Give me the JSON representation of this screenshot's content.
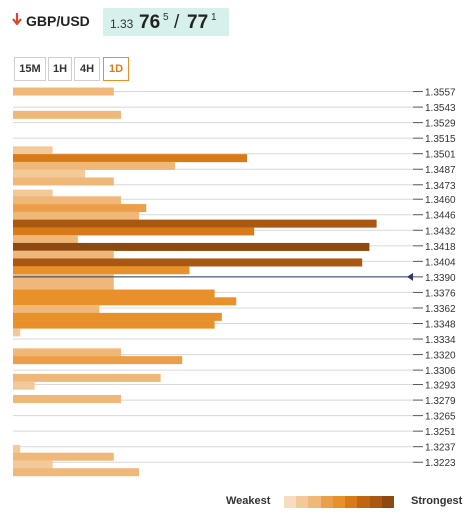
{
  "header": {
    "pair": "GBP/USD",
    "trend_icon": "down-arrow-icon",
    "bid_prefix": "1.33",
    "bid_main": "76",
    "bid_sup": "5",
    "separator": "/",
    "ask_main": "77",
    "ask_sup": "1"
  },
  "tabs": [
    {
      "label": "15M",
      "active": false
    },
    {
      "label": "1H",
      "active": false
    },
    {
      "label": "4H",
      "active": false
    },
    {
      "label": "1D",
      "active": true
    }
  ],
  "legend": {
    "weakest": "Weakest",
    "strongest": "Strongest",
    "scale_colors": [
      "#f8dcc0",
      "#f3c99a",
      "#f0b878",
      "#ec9e48",
      "#e8902a",
      "#d97a18",
      "#c06612",
      "#a85810",
      "#8c4a0e"
    ]
  },
  "colors": {
    "arrow_down": "#d9462a",
    "quote_bg": "#d6f0ec",
    "current_price_line": "#2b3a67",
    "grid_line": "#cccccc"
  },
  "chart_data": {
    "type": "bar",
    "orientation": "horizontal",
    "description_note": "Technical confluence indicator; bar length = confluence strength (0-100 relative scale); level = price level",
    "price_labels": [
      "1.3557",
      "1.3543",
      "1.3529",
      "1.3515",
      "1.3501",
      "1.3487",
      "1.3473",
      "1.3460",
      "1.3446",
      "1.3432",
      "1.3418",
      "1.3404",
      "1.3390",
      "1.3376",
      "1.3362",
      "1.3348",
      "1.3334",
      "1.3320",
      "1.3306",
      "1.3293",
      "1.3279",
      "1.3265",
      "1.3251",
      "1.3237",
      "1.3223"
    ],
    "ylim": [
      1.3216,
      1.3562
    ],
    "xlim": [
      0,
      100
    ],
    "current_price": 1.339,
    "bars": [
      {
        "level": 1.3557,
        "strength": 28,
        "shade": 2
      },
      {
        "level": 1.3536,
        "strength": 30,
        "shade": 2
      },
      {
        "level": 1.3504,
        "strength": 11,
        "shade": 1
      },
      {
        "level": 1.3497,
        "strength": 65,
        "shade": 5
      },
      {
        "level": 1.349,
        "strength": 45,
        "shade": 2
      },
      {
        "level": 1.3483,
        "strength": 20,
        "shade": 1
      },
      {
        "level": 1.3476,
        "strength": 28,
        "shade": 2
      },
      {
        "level": 1.3465,
        "strength": 11,
        "shade": 1
      },
      {
        "level": 1.3459,
        "strength": 30,
        "shade": 2
      },
      {
        "level": 1.3452,
        "strength": 37,
        "shade": 3
      },
      {
        "level": 1.3445,
        "strength": 35,
        "shade": 2
      },
      {
        "level": 1.3438,
        "strength": 101,
        "shade": 7
      },
      {
        "level": 1.3431,
        "strength": 67,
        "shade": 5
      },
      {
        "level": 1.3424,
        "strength": 18,
        "shade": 2
      },
      {
        "level": 1.3417,
        "strength": 99,
        "shade": 8
      },
      {
        "level": 1.341,
        "strength": 28,
        "shade": 2
      },
      {
        "level": 1.3403,
        "strength": 97,
        "shade": 7
      },
      {
        "level": 1.3396,
        "strength": 49,
        "shade": 4
      },
      {
        "level": 1.3389,
        "strength": 28,
        "shade": 2
      },
      {
        "level": 1.3382,
        "strength": 28,
        "shade": 2
      },
      {
        "level": 1.3375,
        "strength": 56,
        "shade": 4
      },
      {
        "level": 1.3368,
        "strength": 62,
        "shade": 4
      },
      {
        "level": 1.3361,
        "strength": 24,
        "shade": 2
      },
      {
        "level": 1.3354,
        "strength": 58,
        "shade": 4
      },
      {
        "level": 1.3347,
        "strength": 56,
        "shade": 4
      },
      {
        "level": 1.334,
        "strength": 2,
        "shade": 1
      },
      {
        "level": 1.3322,
        "strength": 30,
        "shade": 2
      },
      {
        "level": 1.3315,
        "strength": 47,
        "shade": 3
      },
      {
        "level": 1.3299,
        "strength": 41,
        "shade": 2
      },
      {
        "level": 1.3292,
        "strength": 6,
        "shade": 1
      },
      {
        "level": 1.328,
        "strength": 30,
        "shade": 2
      },
      {
        "level": 1.3235,
        "strength": 2,
        "shade": 1
      },
      {
        "level": 1.3228,
        "strength": 28,
        "shade": 2
      },
      {
        "level": 1.3221,
        "strength": 11,
        "shade": 1
      },
      {
        "level": 1.3214,
        "strength": 35,
        "shade": 2
      }
    ]
  }
}
